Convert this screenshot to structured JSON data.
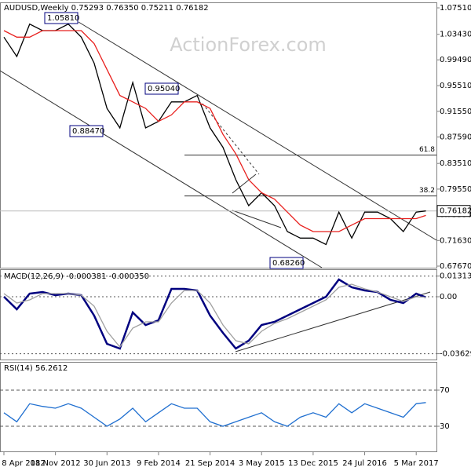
{
  "chart_data": [
    {
      "type": "line",
      "title": "AUDUSD,Weekly  0.75293 0.76350 0.75211 0.76182",
      "watermark": "ActionForex.com",
      "x": [
        "2012-04-08",
        "2012-06-03",
        "2012-07-29",
        "2012-09-23",
        "2012-11-18",
        "2013-01-13",
        "2013-03-10",
        "2013-05-05",
        "2013-06-30",
        "2013-08-25",
        "2013-10-20",
        "2013-12-15",
        "2014-02-09",
        "2014-04-06",
        "2014-06-01",
        "2014-07-27",
        "2014-09-21",
        "2014-11-16",
        "2015-01-11",
        "2015-03-08",
        "2015-05-03",
        "2015-06-28",
        "2015-08-23",
        "2015-10-18",
        "2015-12-13",
        "2016-02-07",
        "2016-04-03",
        "2016-05-29",
        "2016-07-24",
        "2016-09-18",
        "2016-11-13",
        "2017-01-08",
        "2017-03-05",
        "2017-04-16"
      ],
      "xlim": [
        "2012-03-22",
        "2017-06-01"
      ],
      "xticks": [
        {
          "value": "2012-04-08",
          "label": "8 Apr 2012"
        },
        {
          "value": "2012-11-18",
          "label": "18 Nov 2012"
        },
        {
          "value": "2013-06-30",
          "label": "30 Jun 2013"
        },
        {
          "value": "2014-02-09",
          "label": "9 Feb 2014"
        },
        {
          "value": "2014-09-21",
          "label": "21 Sep 2014"
        },
        {
          "value": "2015-05-03",
          "label": "3 May 2015"
        },
        {
          "value": "2015-12-13",
          "label": "13 Dec 2015"
        },
        {
          "value": "2016-07-24",
          "label": "24 Jul 2016"
        },
        {
          "value": "2017-03-05",
          "label": "5 Mar 2017"
        }
      ],
      "ylim": [
        0.6743,
        1.0836
      ],
      "yticks": [
        {
          "value": 1.0751,
          "label": "1.07510"
        },
        {
          "value": 1.0343,
          "label": "1.03430"
        },
        {
          "value": 0.9949,
          "label": "0.99490"
        },
        {
          "value": 0.9551,
          "label": "0.95510"
        },
        {
          "value": 0.9155,
          "label": "0.91550"
        },
        {
          "value": 0.8759,
          "label": "0.87590"
        },
        {
          "value": 0.8351,
          "label": "0.83510"
        },
        {
          "value": 0.7955,
          "label": "0.79550"
        },
        {
          "value": 0.7559,
          "label": "0.75590"
        },
        {
          "value": 0.7163,
          "label": "0.71630"
        },
        {
          "value": 0.6767,
          "label": "0.67670"
        }
      ],
      "series": [
        {
          "name": "Close",
          "color": "#000000",
          "values": [
            1.03,
            1.0,
            1.05,
            1.04,
            1.04,
            1.05,
            1.03,
            0.99,
            0.92,
            0.89,
            0.96,
            0.89,
            0.9,
            0.93,
            0.93,
            0.94,
            0.89,
            0.86,
            0.81,
            0.77,
            0.79,
            0.77,
            0.73,
            0.72,
            0.72,
            0.71,
            0.76,
            0.72,
            0.76,
            0.76,
            0.75,
            0.73,
            0.76,
            0.76182
          ]
        },
        {
          "name": "MA",
          "color": "#e8201e",
          "values": [
            1.04,
            1.03,
            1.03,
            1.04,
            1.04,
            1.04,
            1.04,
            1.02,
            0.98,
            0.94,
            0.93,
            0.92,
            0.9,
            0.91,
            0.93,
            0.93,
            0.92,
            0.88,
            0.85,
            0.81,
            0.79,
            0.78,
            0.76,
            0.74,
            0.73,
            0.73,
            0.73,
            0.74,
            0.75,
            0.75,
            0.75,
            0.75,
            0.75,
            0.755
          ]
        }
      ],
      "annotations": [
        "1.05810",
        "0.95040",
        "0.88470",
        "0.68260"
      ],
      "fib_levels": [
        {
          "label": "61.8",
          "value": 0.8481
        },
        {
          "label": "38.2",
          "value": 0.7849
        }
      ],
      "last_price": {
        "value": 0.76182,
        "label": "0.76182"
      }
    },
    {
      "type": "line",
      "title": "MACD(12,26,9) -0.000381 -0.000350",
      "ylim": [
        -0.04,
        0.0175
      ],
      "yticks": [
        0.013131,
        {
          "value": 0,
          "label": "0.00"
        },
        -0.03629
      ],
      "series": [
        {
          "name": "MACD",
          "color": "#00007f",
          "values": [
            0.0,
            -0.008,
            0.002,
            0.003,
            0.001,
            0.002,
            0.001,
            -0.012,
            -0.03,
            -0.033,
            -0.01,
            -0.018,
            -0.015,
            0.005,
            0.005,
            0.004,
            -0.012,
            -0.023,
            -0.033,
            -0.028,
            -0.018,
            -0.016,
            -0.012,
            -0.008,
            -0.004,
            0.0,
            0.011,
            0.006,
            0.004,
            0.003,
            -0.002,
            -0.004,
            0.002,
            -0.000381
          ]
        },
        {
          "name": "Signal",
          "color": "#a0a0a0",
          "values": [
            0.002,
            -0.004,
            -0.002,
            0.002,
            0.002,
            0.002,
            0.001,
            -0.006,
            -0.022,
            -0.032,
            -0.02,
            -0.016,
            -0.016,
            -0.004,
            0.004,
            0.004,
            -0.004,
            -0.018,
            -0.028,
            -0.03,
            -0.022,
            -0.017,
            -0.014,
            -0.01,
            -0.006,
            -0.002,
            0.006,
            0.008,
            0.005,
            0.003,
            0.0,
            -0.003,
            0.0,
            -0.00035
          ]
        }
      ]
    },
    {
      "type": "line",
      "title": "RSI(14) 56.2612",
      "ylim": [
        2.2,
        101.3
      ],
      "yticks": [
        70,
        30
      ],
      "series": [
        {
          "name": "RSI",
          "color": "#1f6fd0",
          "values": [
            45,
            35,
            55,
            52,
            50,
            55,
            50,
            40,
            30,
            38,
            50,
            35,
            45,
            55,
            50,
            50,
            35,
            30,
            35,
            40,
            45,
            35,
            30,
            40,
            45,
            40,
            55,
            45,
            55,
            50,
            45,
            40,
            55,
            56.2612
          ]
        }
      ]
    }
  ]
}
